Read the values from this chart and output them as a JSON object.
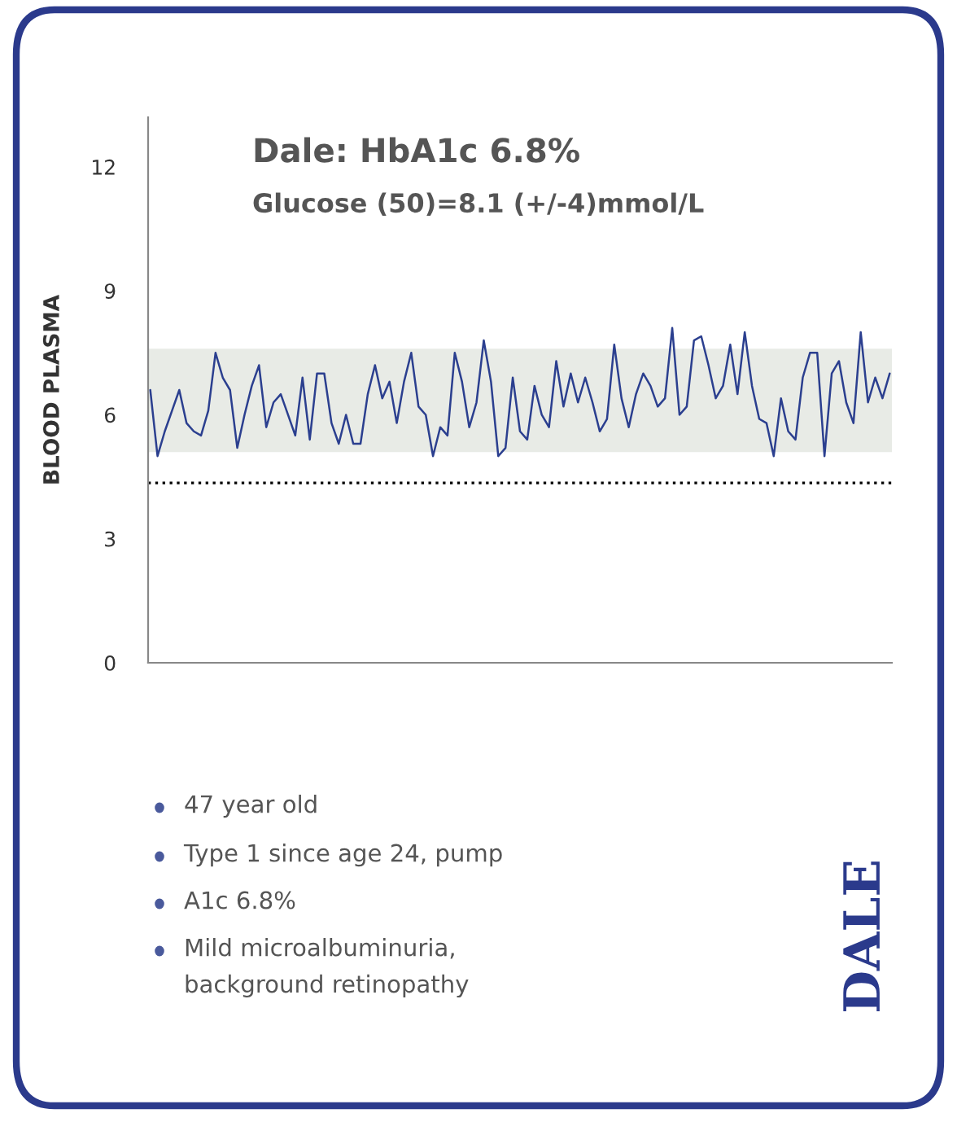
{
  "chart_data": {
    "type": "line",
    "title": "Dale: HbA1c 6.8%",
    "subtitle": "Glucose (50)=8.1 (+/-4)mmol/L",
    "ylabel": "BLOOD PLASMA",
    "annotations": [
      "47 year old",
      "Type 1 since age 24, pump",
      "A1c 6.8%",
      "Mild microalbuminuria,\nbackground retinopathy",
      "DALE"
    ],
    "categories": [
      null,
      null,
      null,
      null,
      null,
      null,
      null,
      null,
      null,
      null,
      null,
      null,
      null,
      null,
      null,
      null,
      null,
      null,
      null,
      null,
      null,
      null,
      null,
      null,
      null,
      null,
      null,
      null,
      null,
      null,
      null,
      null,
      null,
      null,
      null,
      null,
      null,
      null,
      null,
      null,
      null,
      null,
      null,
      null,
      null,
      null,
      null,
      null,
      null,
      null,
      null,
      null,
      null,
      null,
      null,
      null,
      null,
      null,
      null,
      null,
      null,
      null,
      null,
      null,
      null,
      null,
      null,
      null,
      null,
      null,
      null,
      null,
      null,
      null,
      null,
      null,
      null,
      null,
      null,
      null,
      null,
      null,
      null,
      null,
      null,
      null,
      null,
      null,
      null,
      null,
      null,
      null,
      null,
      null,
      null,
      null,
      null,
      null,
      null,
      null,
      null,
      null,
      null
    ],
    "series": [
      {
        "color": "#2b3f8f",
        "values": [
          6.6,
          5.0,
          5.6,
          6.1,
          6.6,
          5.8,
          5.6,
          5.5,
          6.1,
          7.5,
          6.9,
          6.6,
          5.2,
          6.0,
          6.7,
          7.2,
          5.7,
          6.3,
          6.5,
          6.0,
          5.5,
          6.9,
          5.4,
          7.0,
          7.0,
          5.8,
          5.3,
          6.0,
          5.3,
          5.3,
          6.5,
          7.2,
          6.4,
          6.8,
          5.8,
          6.8,
          7.5,
          6.2,
          6.0,
          5.0,
          5.7,
          5.5,
          7.5,
          6.8,
          5.7,
          6.3,
          7.8,
          6.8,
          5.0,
          5.2,
          6.9,
          5.6,
          5.4,
          6.7,
          6.0,
          5.7,
          7.3,
          6.2,
          7.0,
          6.3,
          6.9,
          6.3,
          5.6,
          5.9,
          7.7,
          6.4,
          5.7,
          6.5,
          7.0,
          6.7,
          6.2,
          6.4,
          8.1,
          6.0,
          6.2,
          7.8,
          7.9,
          7.2,
          6.4,
          6.7,
          7.7,
          6.5,
          8.0,
          6.7,
          5.9,
          5.8,
          5.0,
          6.4,
          5.6,
          5.4,
          6.9,
          7.5,
          7.5,
          5.0,
          7.0,
          7.3,
          6.3,
          5.8,
          8.0,
          6.3,
          6.9,
          6.4,
          7.0
        ]
      }
    ],
    "ylim": [
      0,
      13.2
    ],
    "yticks": [
      0,
      3,
      6,
      9,
      12
    ],
    "grid": false,
    "legend": false,
    "marker": "none",
    "line_style": "solid",
    "bands": [
      {
        "axis": "y",
        "from": 5.1,
        "to": 7.6,
        "color": "#e8ebe6"
      }
    ],
    "ref_lines": [
      {
        "axis": "y",
        "value": 4.35,
        "color": "#000000",
        "line_style": "dotted"
      }
    ]
  }
}
